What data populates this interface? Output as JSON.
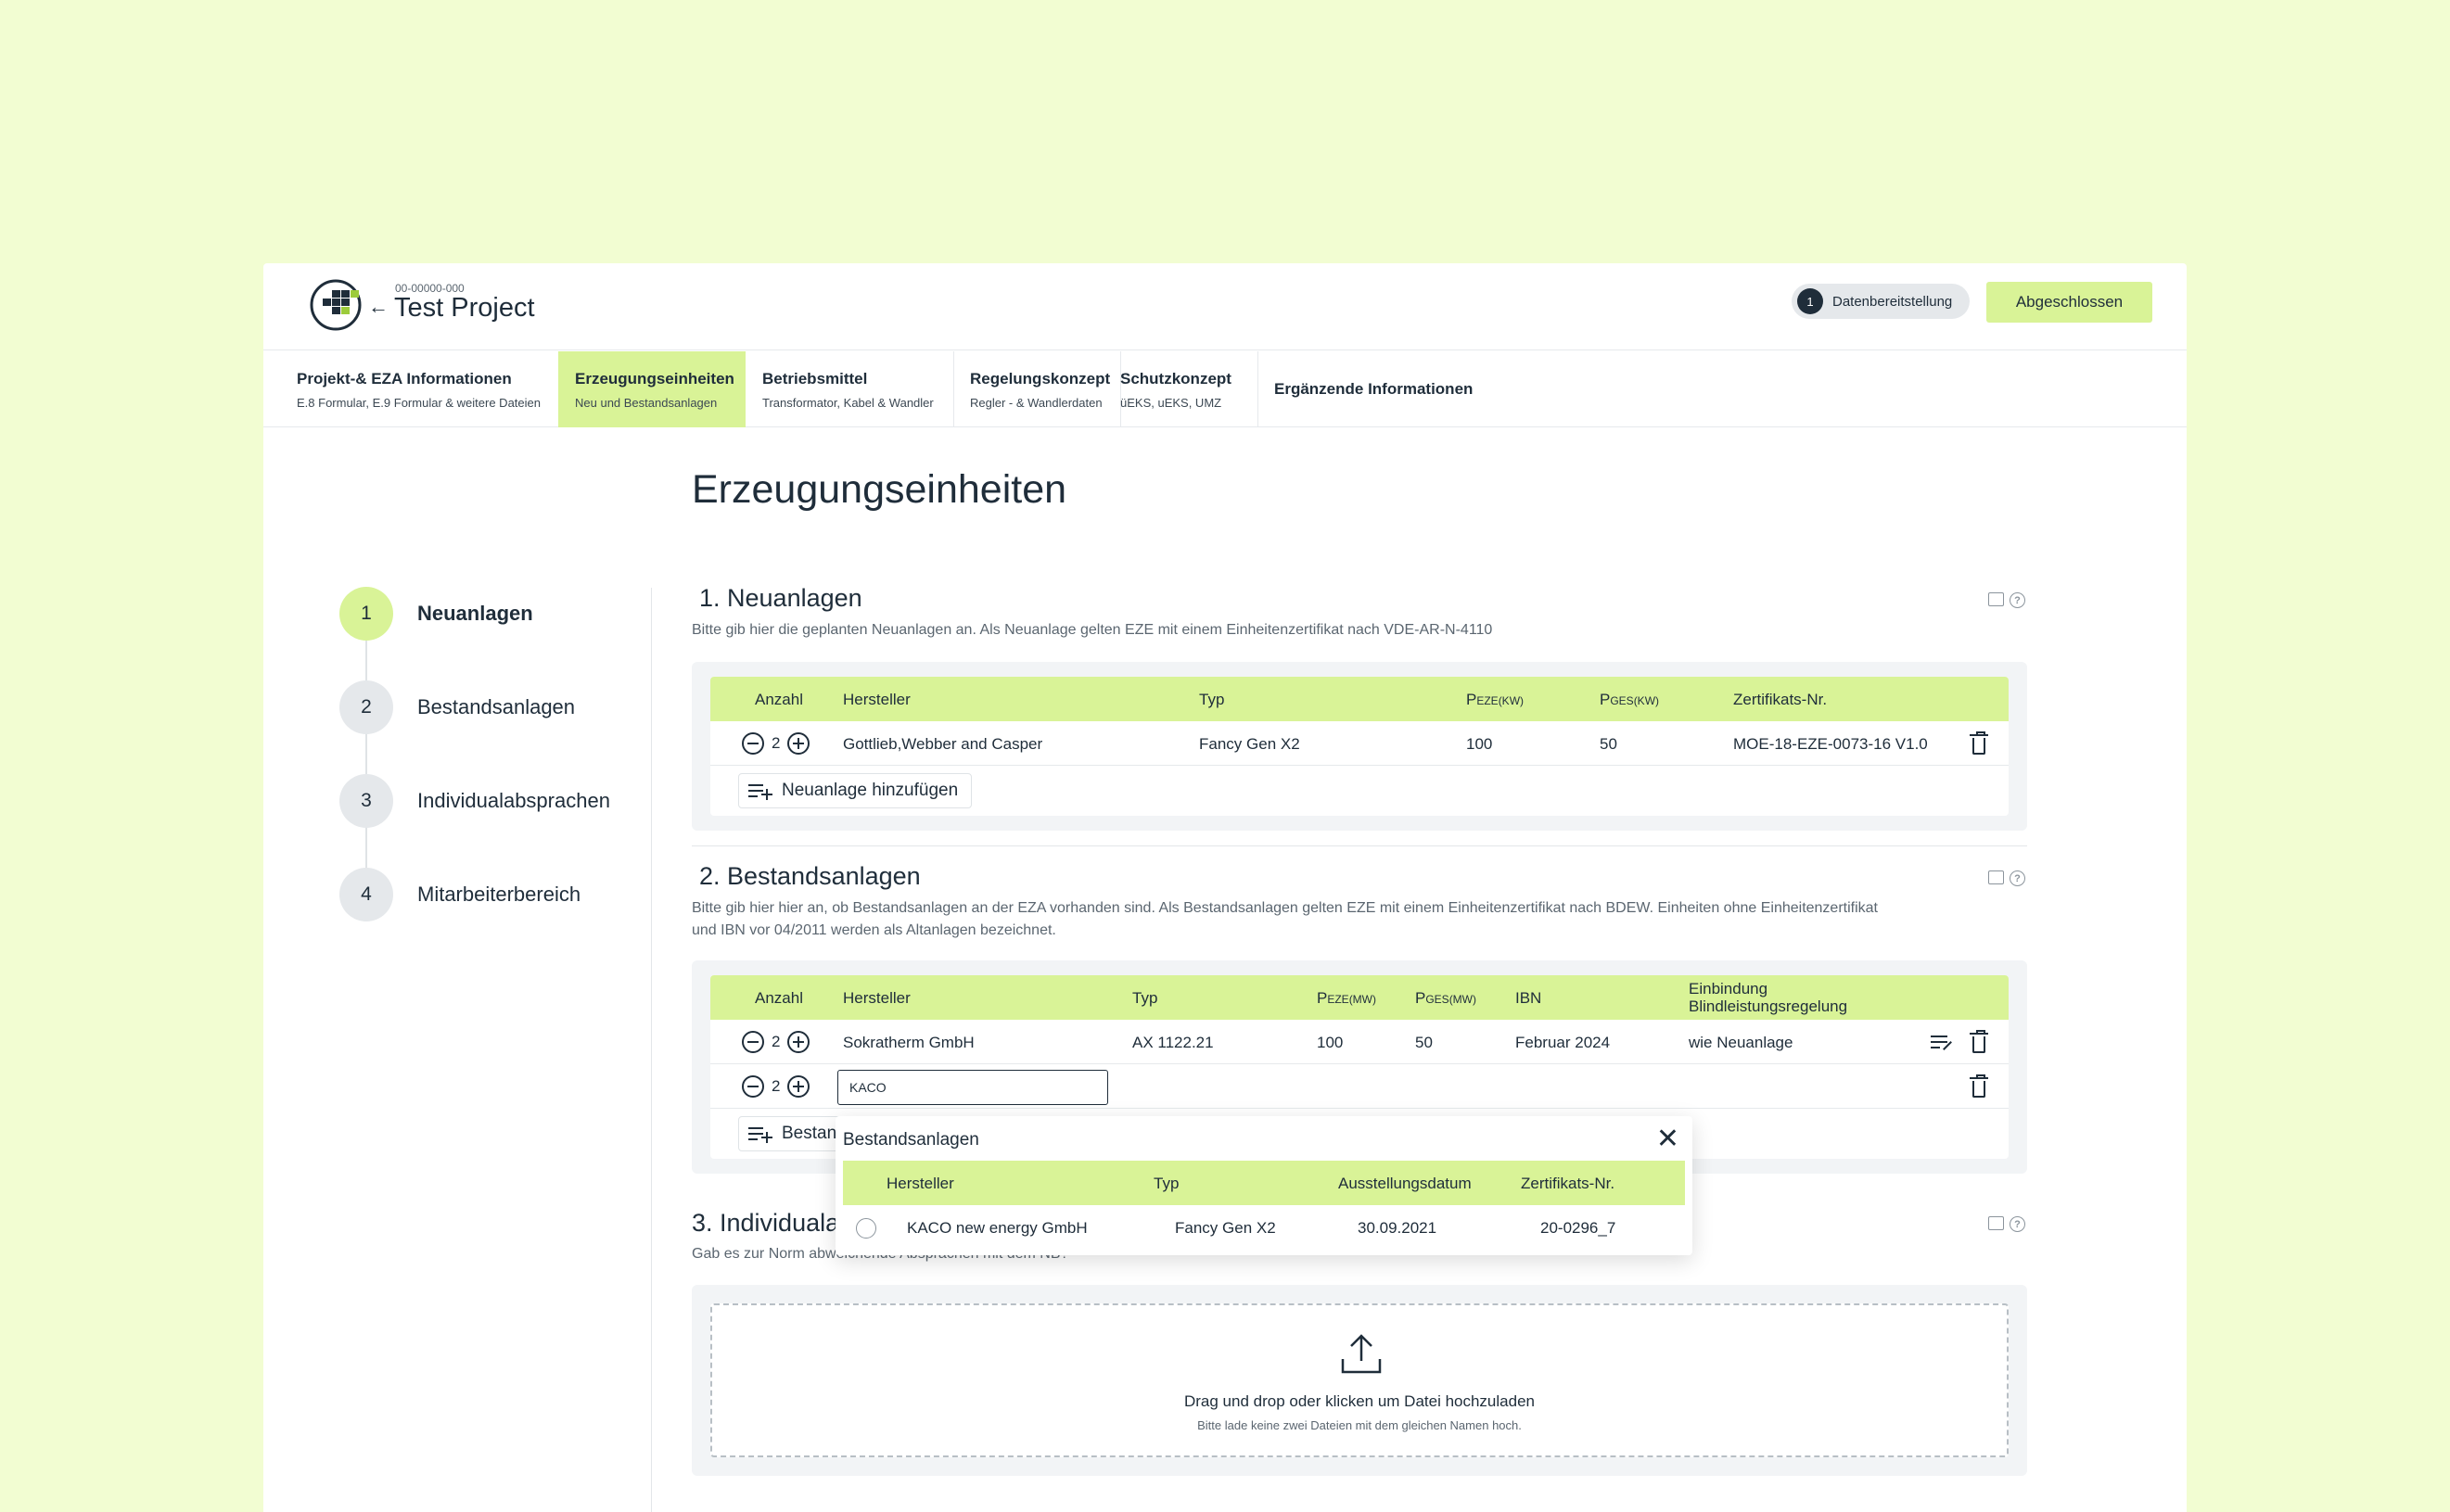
{
  "header": {
    "project_id": "00-00000-000",
    "project_title": "Test Project",
    "status_step": "1",
    "status_label": "Datenbereitstellung",
    "done_label": "Abgeschlossen"
  },
  "tabs": [
    {
      "title": "Projekt-& EZA Informationen",
      "subtitle": "E.8 Formular, E.9 Formular &  weitere Dateien"
    },
    {
      "title": "Erzeugungseinheiten",
      "subtitle": "Neu und Bestandsanlagen"
    },
    {
      "title": "Betriebsmittel",
      "subtitle": "Transformator, Kabel & Wandler"
    },
    {
      "title": "Regelungskonzept",
      "subtitle": "Regler - & Wandlerdaten"
    },
    {
      "title": "Schutzkonzept",
      "subtitle": "üEKS, uEKS, UMZ"
    },
    {
      "title": "Ergänzende Informationen",
      "subtitle": ""
    }
  ],
  "page_title": "Erzeugungseinheiten",
  "steps": [
    {
      "num": "1",
      "label": "Neuanlagen"
    },
    {
      "num": "2",
      "label": "Bestandsanlagen"
    },
    {
      "num": "3",
      "label": "Individualabsprachen"
    },
    {
      "num": "4",
      "label": "Mitarbeiterbereich"
    }
  ],
  "neuanlagen": {
    "title": "1. Neuanlagen",
    "description": "Bitte gib hier die geplanten Neuanlagen an. Als Neuanlage gelten EZE mit einem  Einheitenzertifikat nach VDE-AR-N-4110",
    "headers": {
      "anzahl": "Anzahl",
      "hersteller": "Hersteller",
      "typ": "Typ",
      "peze": "P",
      "peze_sub": "EZE",
      "peze_unit": "(KW)",
      "pges": "P",
      "pges_sub": "GES",
      "pges_unit": "(KW)",
      "zert": "Zertifikats-Nr."
    },
    "rows": [
      {
        "anzahl": "2",
        "hersteller": "Gottlieb,Webber and Casper",
        "typ": "Fancy Gen X2",
        "peze": "100",
        "pges": "50",
        "zert": "MOE-18-EZE-0073-16 V1.0"
      }
    ],
    "add_label": "Neuanlage hinzufügen"
  },
  "bestandsanlagen": {
    "title": "2. Bestandsanlagen",
    "description_line1": "Bitte gib hier hier an, ob Bestandsanlagen an der EZA vorhanden sind. Als Bestandsanlagen gelten EZE mit einem Einheitenzertifikat nach BDEW. Einheiten ohne Einheitenzertifikat",
    "description_line2": "und IBN vor 04/2011 werden als Altanlagen bezeichnet.",
    "headers": {
      "anzahl": "Anzahl",
      "hersteller": "Hersteller",
      "typ": "Typ",
      "peze": "P",
      "peze_sub": "EZE",
      "peze_unit": "(MW)",
      "pges": "P",
      "pges_sub": "GES",
      "pges_unit": "(MW)",
      "ibn": "IBN",
      "einbindung_1": "Einbindung",
      "einbindung_2": "Blindleistungsregelung"
    },
    "rows": [
      {
        "anzahl": "2",
        "hersteller": "Sokratherm GmbH",
        "typ": "AX 1122.21",
        "peze": "100",
        "pges": "50",
        "ibn": "Februar 2024",
        "einbindung": "wie Neuanlage"
      },
      {
        "anzahl": "2",
        "input_value": "KACO"
      }
    ],
    "add_label": "Bestandsanlage hinzufügen"
  },
  "popup": {
    "title": "Bestandsanlagen",
    "close": "✕",
    "headers": {
      "hersteller": "Hersteller",
      "typ": "Typ",
      "datum": "Ausstellungsdatum",
      "zert": "Zertifikats-Nr."
    },
    "row": {
      "hersteller": "KACO new energy GmbH",
      "typ": "Fancy Gen X2",
      "datum": "30.09.2021",
      "zert": "20-0296_7"
    }
  },
  "individual": {
    "title": "3. Individualabsprachen",
    "description": "Gab es zur Norm abweichende Absprachen mit dem NB?"
  },
  "upload": {
    "text": "Drag und drop oder klicken um Datei hochzuladen",
    "subtext": "Bitte lade keine zwei Dateien mit dem gleichen Namen hoch."
  },
  "colors": {
    "accent": "#d9f397",
    "background": "#f2fdd2",
    "text": "#1f2d3a"
  }
}
